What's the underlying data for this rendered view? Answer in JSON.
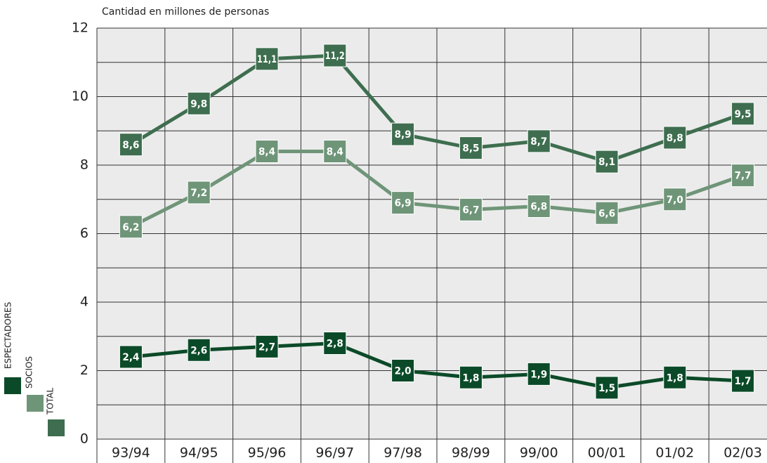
{
  "chart_data": {
    "type": "line",
    "y_label": "Cantidad en millones de personas",
    "categories": [
      "93/94",
      "94/95",
      "95/96",
      "96/97",
      "97/98",
      "98/99",
      "99/00",
      "00/01",
      "01/02",
      "02/03"
    ],
    "series": [
      {
        "name": "ESPECTADORES",
        "color": "#0b4a28",
        "values": [
          2.4,
          2.6,
          2.7,
          2.8,
          2.0,
          1.8,
          1.9,
          1.5,
          1.8,
          1.7
        ],
        "value_labels": [
          "2,4",
          "2,6",
          "2,7",
          "2,8",
          "2,0",
          "1,8",
          "1,9",
          "1,5",
          "1,8",
          "1,7"
        ]
      },
      {
        "name": "SOCIOS",
        "color": "#6f9578",
        "values": [
          6.2,
          7.2,
          8.4,
          8.4,
          6.9,
          6.7,
          6.8,
          6.6,
          7.0,
          7.7
        ],
        "value_labels": [
          "6,2",
          "7,2",
          "8,4",
          "8,4",
          "6,9",
          "6,7",
          "6,8",
          "6,6",
          "7,0",
          "7,7"
        ]
      },
      {
        "name": "TOTAL",
        "color": "#3e6e4f",
        "values": [
          8.6,
          9.8,
          11.1,
          11.2,
          8.9,
          8.5,
          8.7,
          8.1,
          8.8,
          9.5
        ],
        "value_labels": [
          "8,6",
          "9,8",
          "11,1",
          "11,2",
          "8,9",
          "8,5",
          "8,7",
          "8,1",
          "8,8",
          "9,5"
        ]
      }
    ],
    "ylim": [
      0,
      12
    ],
    "yticks": [
      0,
      2,
      4,
      6,
      8,
      10,
      12
    ],
    "grid": true
  }
}
